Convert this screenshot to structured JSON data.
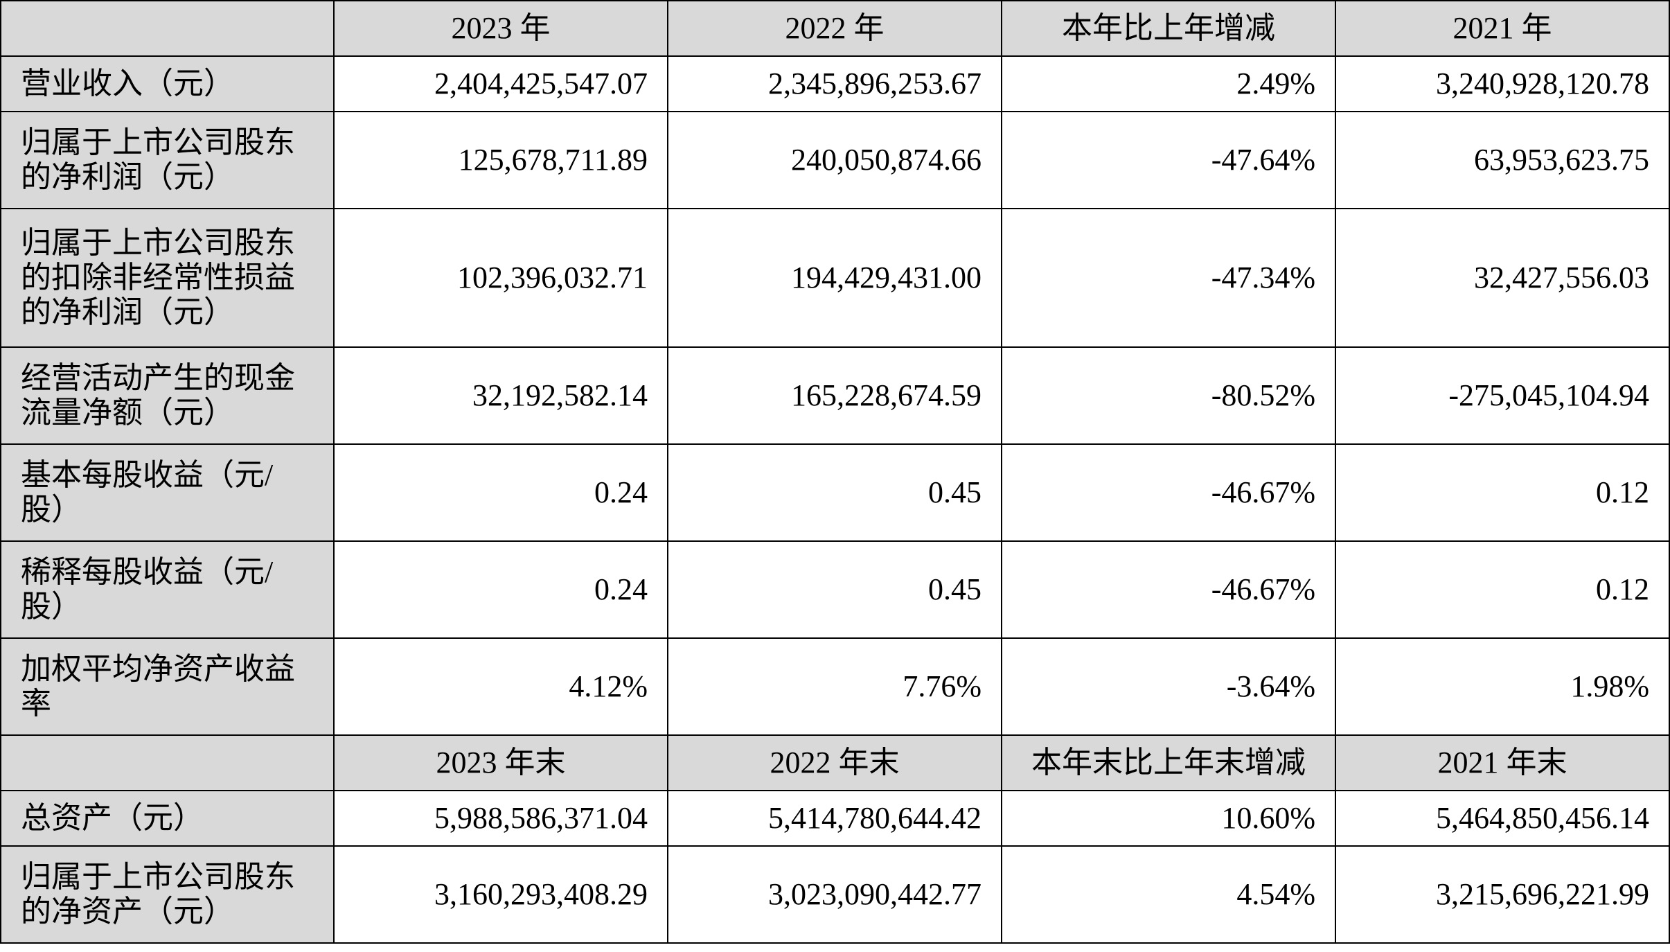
{
  "header1": [
    "",
    "2023 年",
    "2022 年",
    "本年比上年增减",
    "2021 年"
  ],
  "rows1": [
    {
      "label": "营业收入（元）",
      "values": [
        "2,404,425,547.07",
        "2,345,896,253.67",
        "2.49%",
        "3,240,928,120.78"
      ]
    },
    {
      "label": "归属于上市公司股东的净利润（元）",
      "values": [
        "125,678,711.89",
        "240,050,874.66",
        "-47.64%",
        "63,953,623.75"
      ]
    },
    {
      "label": "归属于上市公司股东的扣除非经常性损益的净利润（元）",
      "values": [
        "102,396,032.71",
        "194,429,431.00",
        "-47.34%",
        "32,427,556.03"
      ]
    },
    {
      "label": "经营活动产生的现金流量净额（元）",
      "values": [
        "32,192,582.14",
        "165,228,674.59",
        "-80.52%",
        "-275,045,104.94"
      ]
    },
    {
      "label": "基本每股收益（元/股）",
      "values": [
        "0.24",
        "0.45",
        "-46.67%",
        "0.12"
      ]
    },
    {
      "label": "稀释每股收益（元/股）",
      "values": [
        "0.24",
        "0.45",
        "-46.67%",
        "0.12"
      ]
    },
    {
      "label": "加权平均净资产收益率",
      "values": [
        "4.12%",
        "7.76%",
        "-3.64%",
        "1.98%"
      ]
    }
  ],
  "header2": [
    "",
    "2023 年末",
    "2022 年末",
    "本年末比上年末增减",
    "2021 年末"
  ],
  "rows2": [
    {
      "label": "总资产（元）",
      "values": [
        "5,988,586,371.04",
        "5,414,780,644.42",
        "10.60%",
        "5,464,850,456.14"
      ]
    },
    {
      "label": "归属于上市公司股东的净资产（元）",
      "values": [
        "3,160,293,408.29",
        "3,023,090,442.77",
        "4.54%",
        "3,215,696,221.99"
      ]
    }
  ]
}
